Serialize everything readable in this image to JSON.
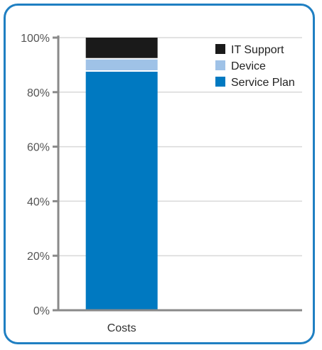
{
  "chart_data": {
    "type": "bar",
    "stacked": true,
    "categories": [
      "Costs"
    ],
    "series": [
      {
        "name": "Service Plan",
        "values": [
          87.5
        ],
        "color": "#0079c1"
      },
      {
        "name": "Device",
        "values": [
          4.5
        ],
        "color": "#9fc2e7"
      },
      {
        "name": "IT Support",
        "values": [
          8
        ],
        "color": "#1a1a1a"
      }
    ],
    "yticks": [
      "0%",
      "20%",
      "40%",
      "60%",
      "80%",
      "100%"
    ],
    "ylim": [
      0,
      100
    ],
    "grid": true,
    "legend": "top-right",
    "legend_order": [
      "IT Support",
      "Device",
      "Service Plan"
    ],
    "colors": {
      "frame": "#1f7fc2",
      "axis": "#8a8a8a",
      "grid": "#d9d9d9"
    }
  }
}
